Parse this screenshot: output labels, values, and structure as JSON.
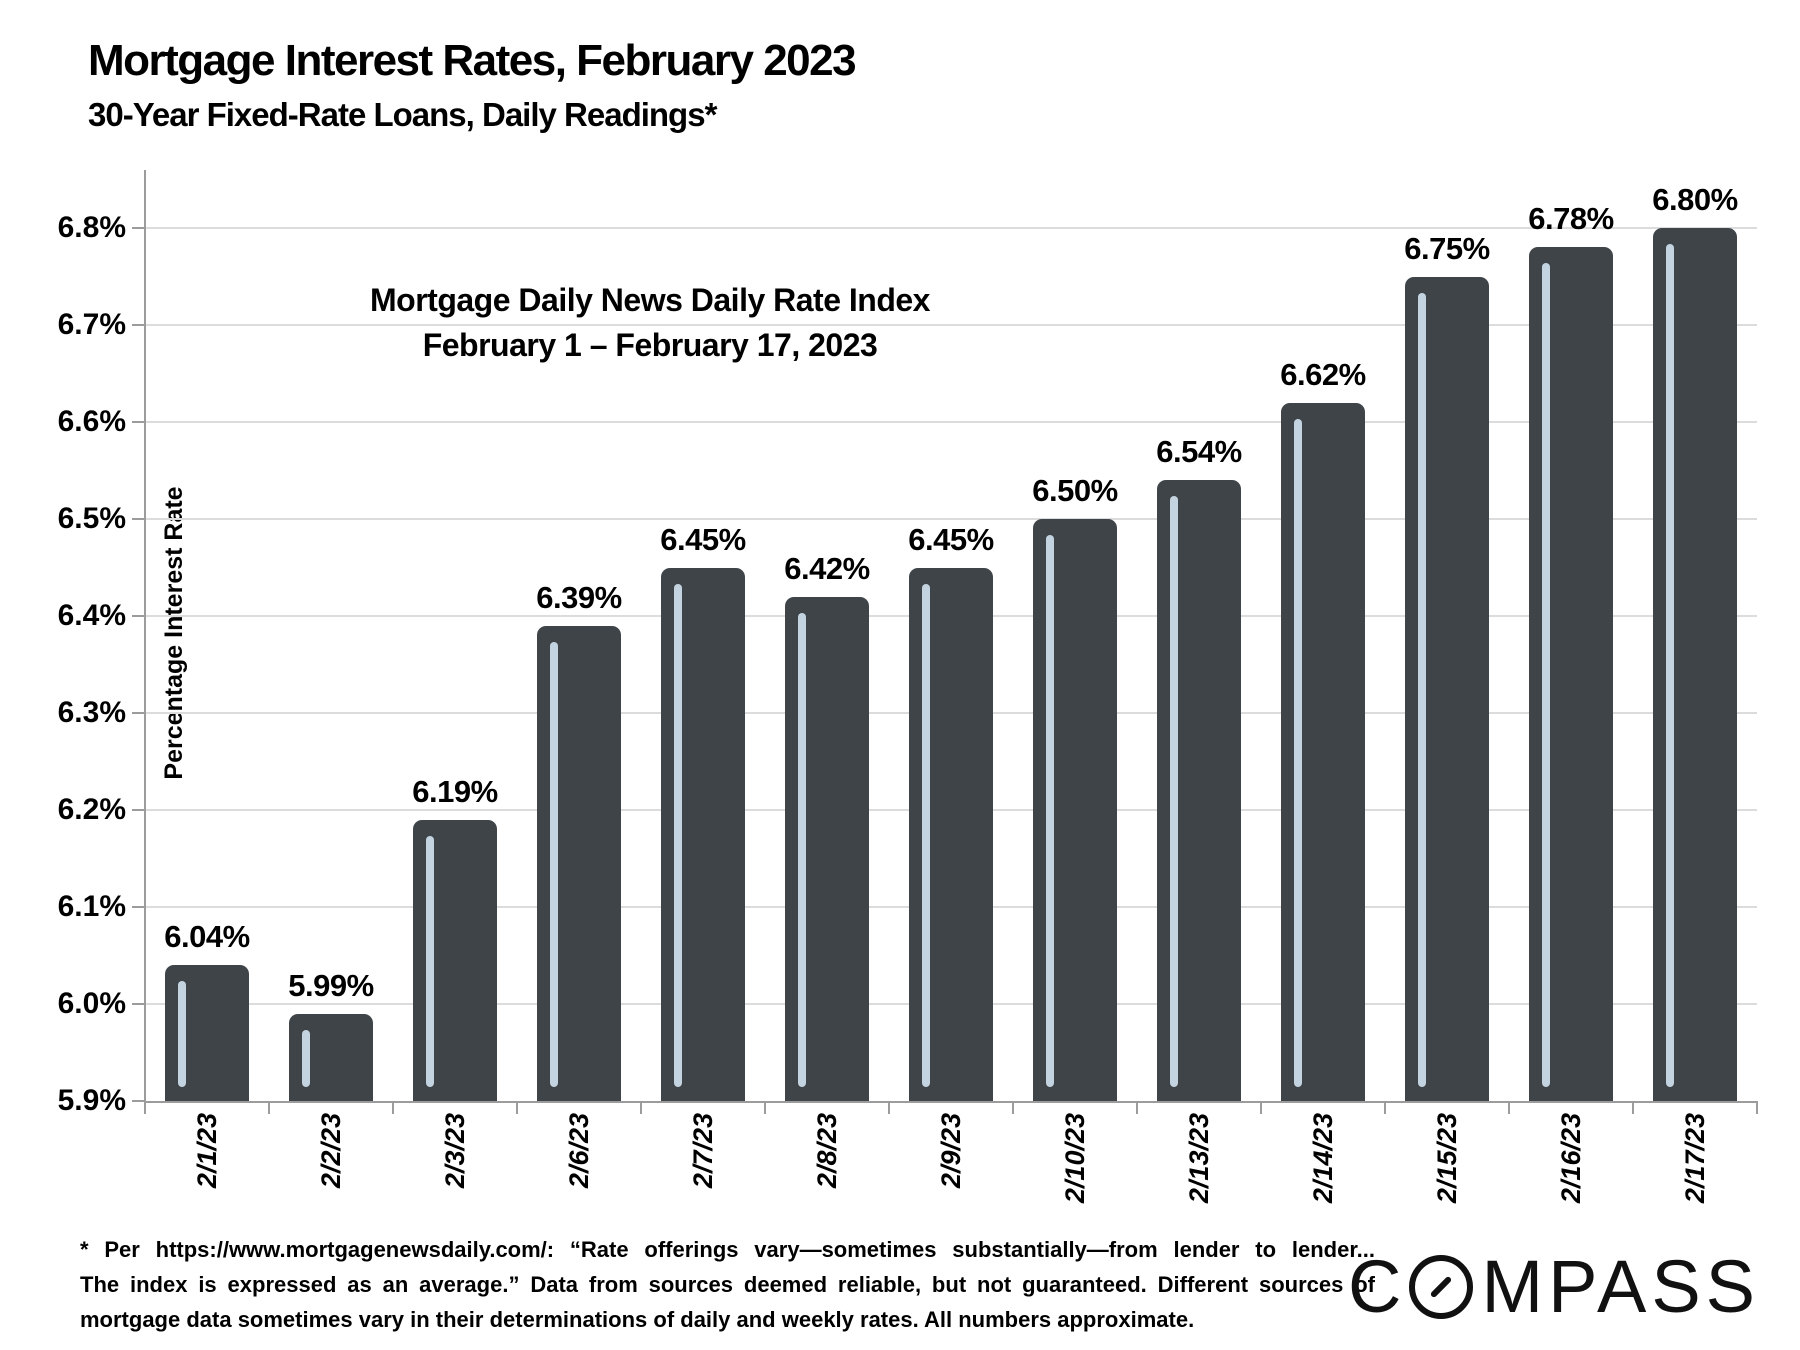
{
  "header": {
    "title": "Mortgage Interest Rates, February 2023",
    "subtitle": "30-Year Fixed-Rate Loans, Daily Readings*"
  },
  "chart_data": {
    "type": "bar",
    "title": "Mortgage Daily News Daily Rate Index",
    "annotation": {
      "line1": "Mortgage Daily News Daily Rate Index",
      "line2": "February 1 – February 17, 2023"
    },
    "categories": [
      "2/1/23",
      "2/2/23",
      "2/3/23",
      "2/6/23",
      "2/7/23",
      "2/8/23",
      "2/9/23",
      "2/10/23",
      "2/13/23",
      "2/14/23",
      "2/15/23",
      "2/16/23",
      "2/17/23"
    ],
    "values": [
      6.04,
      5.99,
      6.19,
      6.39,
      6.45,
      6.42,
      6.45,
      6.5,
      6.54,
      6.62,
      6.75,
      6.78,
      6.8
    ],
    "labels": [
      "6.04%",
      "5.99%",
      "6.19%",
      "6.39%",
      "6.45%",
      "6.42%",
      "6.45%",
      "6.50%",
      "6.54%",
      "6.62%",
      "6.75%",
      "6.78%",
      "6.80%"
    ],
    "xlabel": "",
    "ylabel": "Percentage Interest  Rate",
    "ylim": [
      5.9,
      6.85
    ],
    "yticks": [
      5.9,
      6.0,
      6.1,
      6.2,
      6.3,
      6.4,
      6.5,
      6.6,
      6.7,
      6.8
    ],
    "ytick_labels": [
      "5.9%",
      "6.0%",
      "6.1%",
      "6.2%",
      "6.3%",
      "6.4%",
      "6.5%",
      "6.6%",
      "6.7%",
      "6.8%"
    ],
    "grid": true,
    "legend": "none",
    "colors": {
      "bar": "#3e4448",
      "stripe": "#c3d3e0",
      "gridline": "#dcdcdc",
      "axis": "#9c9c9c",
      "text": "#000000"
    }
  },
  "footnote": {
    "lines": [
      "* Per https://www.mortgagenewsdaily.com/: “Rate offerings vary—sometimes substantially—from lender to lender...",
      "The index is expressed as an average.” Data from sources deemed reliable, but not guaranteed. Different sources of",
      "mortgage data sometimes vary in their determinations of daily and weekly rates. All numbers approximate."
    ]
  },
  "logo": {
    "name": "COMPASS",
    "c": "C",
    "mpass": "MPASS"
  }
}
